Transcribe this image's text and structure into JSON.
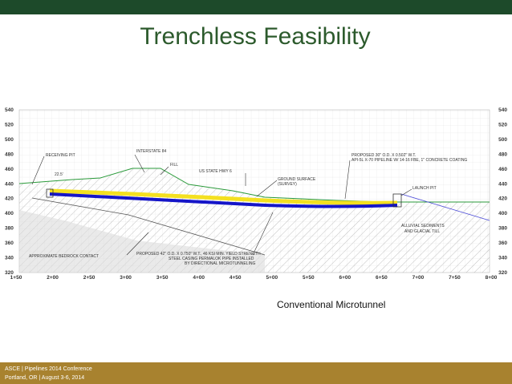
{
  "header": {
    "title": "Trenchless Feasibility"
  },
  "drawing": {
    "elevations": [
      "540",
      "520",
      "500",
      "480",
      "460",
      "440",
      "420",
      "400",
      "380",
      "360",
      "340",
      "320"
    ],
    "stations": [
      "1+50",
      "2+00",
      "2+50",
      "3+00",
      "3+50",
      "4+00",
      "4+50",
      "5+00",
      "5+50",
      "6+00",
      "6+50",
      "7+00",
      "7+50",
      "8+00"
    ],
    "annotations": {
      "interstate": "INTERSTATE 84",
      "fill": "FILL",
      "highway": "US STATE HWY 6",
      "ground": "GROUND SURFACE",
      "survey": "(SURVEY)",
      "pipeline_1": "PROPOSED 30\" O.D. X 0.502\" W.T.",
      "pipeline_2": "API-5L X-70 PIPELINE W/ 14-16 FBE, 1\" CONCRETE COATING",
      "receiving": "RECEIVING PIT",
      "launch": "LAUNCH PIT",
      "depth": "22.5'",
      "alluvial_1": "ALLUVIAL SEDIMENTS",
      "alluvial_2": "AND GLACIAL TILL",
      "bedrock": "APPROXIMATE BEDROCK CONTACT",
      "casing_1": "PROPOSED 42\" O.D. X 0.750\" W.T., 46 KSI MIN. YIELD STRENGTH",
      "casing_2": "STEEL CASING PERMALOK PIPE INSTALLED",
      "casing_3": "BY DIRECTIONAL MICROTUNNELING"
    }
  },
  "caption": "Conventional Microtunnel",
  "footer": {
    "line1": "ASCE | Pipelines 2014 Conference",
    "line2": "Portland, OR | August 3-6, 2014"
  }
}
